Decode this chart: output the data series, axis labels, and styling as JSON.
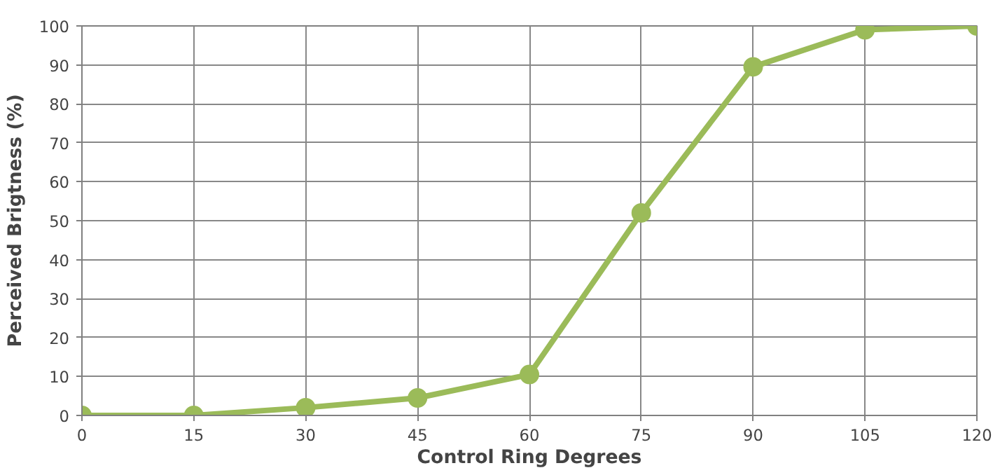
{
  "chart_data": {
    "type": "line",
    "xlabel": "Control Ring Degrees",
    "ylabel": "Perceived Brigtness (%)",
    "x": [
      0,
      15,
      30,
      45,
      60,
      75,
      90,
      105,
      120
    ],
    "series": [
      {
        "color": "#9bbb59",
        "values": [
          0,
          0,
          2,
          4.5,
          10.5,
          52,
          89.5,
          99,
          100
        ]
      }
    ],
    "xlim": [
      0,
      120
    ],
    "xticks": [
      0,
      15,
      30,
      45,
      60,
      75,
      90,
      105,
      120
    ],
    "ylim": [
      0,
      100
    ],
    "yticks": [
      0,
      10,
      20,
      30,
      40,
      50,
      60,
      70,
      80,
      90,
      100
    ],
    "grid": true,
    "marker": "circle",
    "line_style": "solid"
  }
}
